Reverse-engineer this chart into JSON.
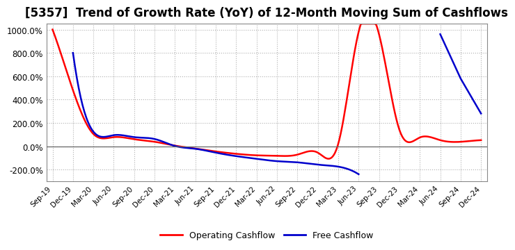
{
  "title": "[5357]  Trend of Growth Rate (YoY) of 12-Month Moving Sum of Cashflows",
  "title_fontsize": 12,
  "ylim": [
    -300,
    1050
  ],
  "yticks": [
    -200,
    0,
    200,
    400,
    600,
    800,
    1000
  ],
  "background_color": "#ffffff",
  "plot_bg_color": "#ffffff",
  "grid_color": "#b0b0b0",
  "operating_color": "#ff0000",
  "free_color": "#0000cc",
  "x_labels": [
    "Sep-19",
    "Dec-19",
    "Mar-20",
    "Jun-20",
    "Sep-20",
    "Dec-20",
    "Mar-21",
    "Jun-21",
    "Sep-21",
    "Dec-21",
    "Mar-22",
    "Jun-22",
    "Sep-22",
    "Dec-22",
    "Mar-23",
    "Jun-23",
    "Sep-23",
    "Dec-23",
    "Mar-24",
    "Jun-24",
    "Sep-24",
    "Dec-24"
  ],
  "operating_cashflow": [
    1000,
    480,
    105,
    78,
    60,
    38,
    5,
    -20,
    -45,
    -65,
    -78,
    -82,
    -72,
    -55,
    20,
    980,
    960,
    140,
    75,
    52,
    38,
    52
  ],
  "free_cashflow": [
    null,
    800,
    125,
    95,
    78,
    62,
    2,
    -22,
    -55,
    -85,
    -108,
    -128,
    -138,
    -158,
    -175,
    -240,
    null,
    null,
    null,
    960,
    580,
    280
  ]
}
